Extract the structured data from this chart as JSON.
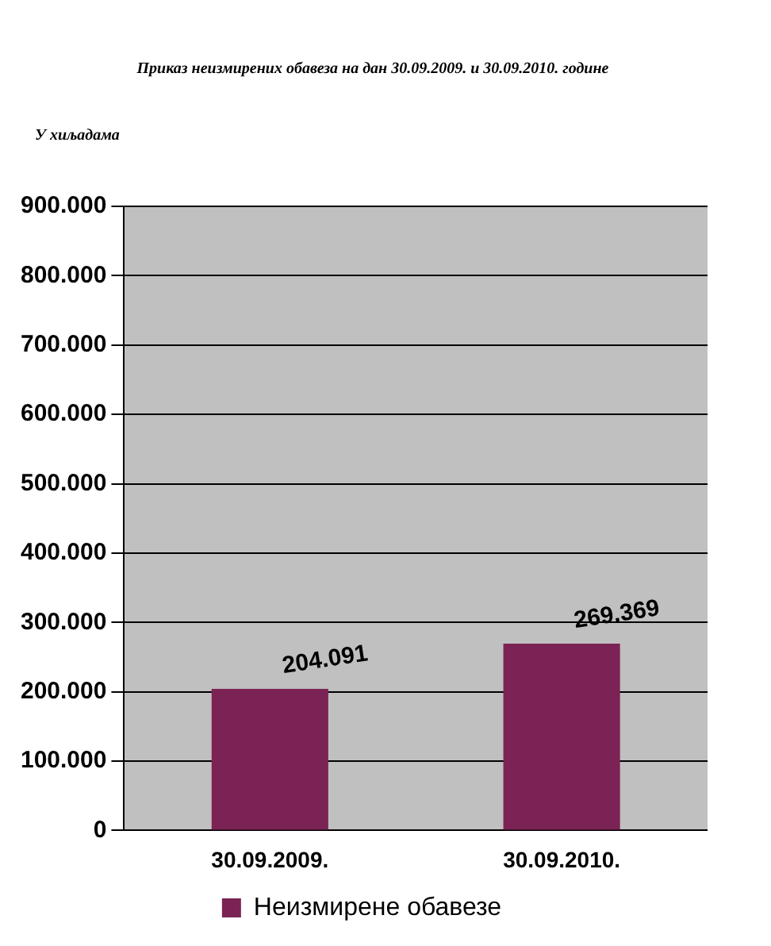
{
  "chart_data": {
    "type": "bar",
    "title": "Приказ неизмирених обавеза на дан 30.09.2009. и 30.09.2010. године",
    "ylabel": "У хиљадама",
    "categories": [
      "30.09.2009.",
      "30.09.2010."
    ],
    "series": [
      {
        "name": "Неизмирене обавезе",
        "color": "#7b2354",
        "values": [
          204091,
          269369
        ],
        "value_labels": [
          "204.091",
          "269.369"
        ]
      }
    ],
    "ylim": [
      0,
      900000
    ],
    "yticks": [
      {
        "value": 0,
        "label": "0"
      },
      {
        "value": 100000,
        "label": "100.000"
      },
      {
        "value": 200000,
        "label": "200.000"
      },
      {
        "value": 300000,
        "label": "300.000"
      },
      {
        "value": 400000,
        "label": "400.000"
      },
      {
        "value": 500000,
        "label": "500.000"
      },
      {
        "value": 600000,
        "label": "600.000"
      },
      {
        "value": 700000,
        "label": "700.000"
      },
      {
        "value": 800000,
        "label": "800.000"
      },
      {
        "value": 900000,
        "label": "900.000"
      }
    ],
    "grid": "y",
    "legend": "bottom"
  }
}
